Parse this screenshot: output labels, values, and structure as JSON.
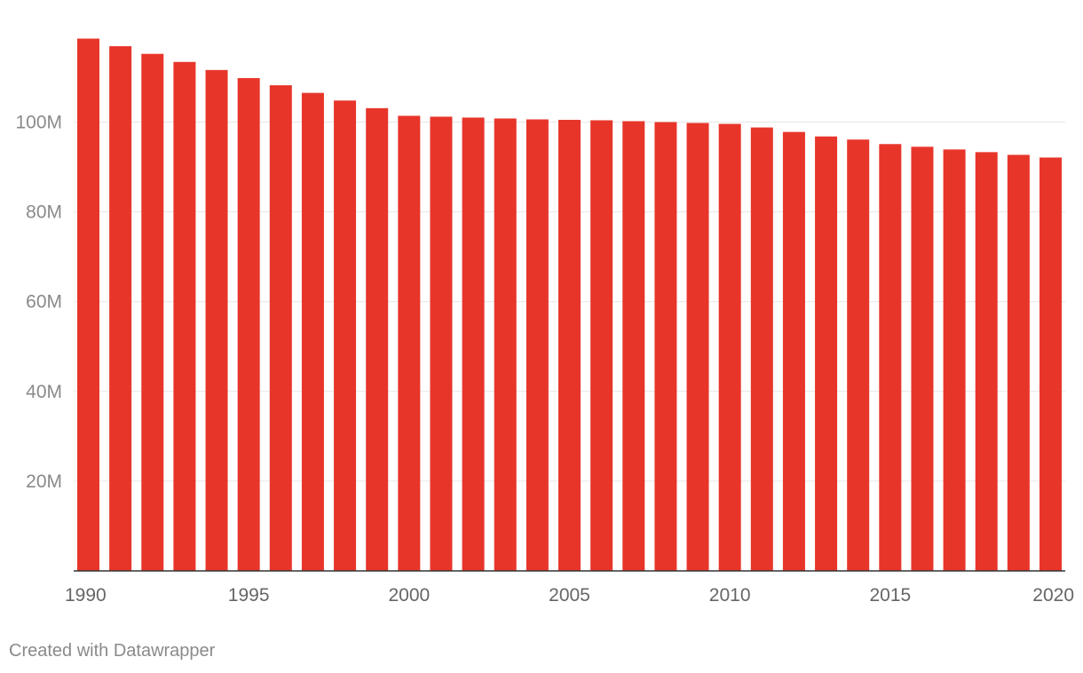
{
  "chart_data": {
    "type": "bar",
    "title": "",
    "xlabel": "",
    "ylabel": "",
    "x": [
      1990,
      1991,
      1992,
      1993,
      1994,
      1995,
      1996,
      1997,
      1998,
      1999,
      2000,
      2001,
      2002,
      2003,
      2004,
      2005,
      2006,
      2007,
      2008,
      2009,
      2010,
      2011,
      2012,
      2013,
      2014,
      2015,
      2016,
      2017,
      2018,
      2019,
      2020
    ],
    "values": [
      118.6,
      116.9,
      115.2,
      113.4,
      111.6,
      109.8,
      108.2,
      106.5,
      104.8,
      103.1,
      101.4,
      101.2,
      101.0,
      100.8,
      100.6,
      100.5,
      100.4,
      100.2,
      100.0,
      99.8,
      99.6,
      98.8,
      97.8,
      96.8,
      96.1,
      95.1,
      94.5,
      93.9,
      93.3,
      92.7,
      92.1
    ],
    "unit": "M",
    "ylim": [
      0,
      120
    ],
    "y_ticks": [
      {
        "value": 20,
        "label": "20M"
      },
      {
        "value": 40,
        "label": "40M"
      },
      {
        "value": 60,
        "label": "60M"
      },
      {
        "value": 80,
        "label": "80M"
      },
      {
        "value": 100,
        "label": "100M"
      }
    ],
    "x_ticks": [
      "1990",
      "1995",
      "2000",
      "2005",
      "2010",
      "2015",
      "2020"
    ],
    "bar_color": "#e8352a",
    "grid": true,
    "legend": "none"
  },
  "footer": {
    "credit": "Created with Datawrapper"
  }
}
